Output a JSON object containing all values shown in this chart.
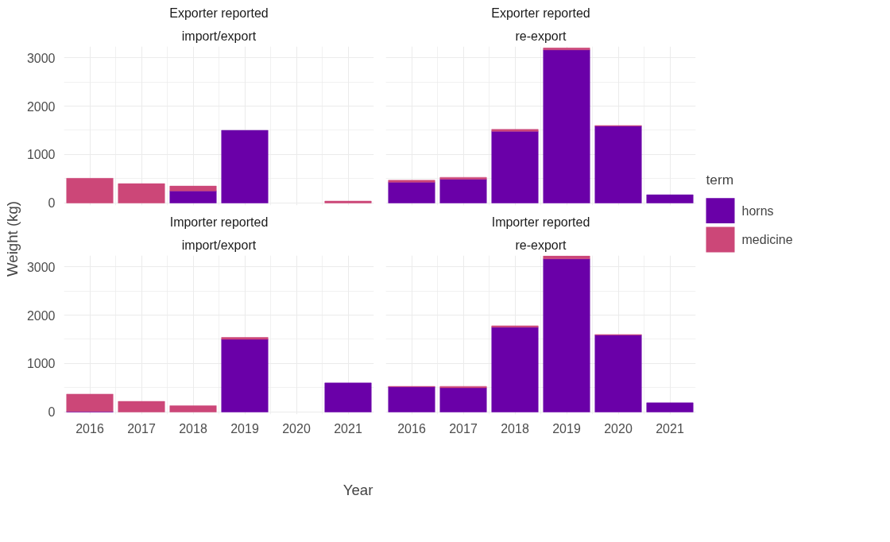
{
  "chart_data": [
    {
      "type": "bar",
      "title": "Exporter reported",
      "subtitle": "import/export",
      "ylabel": "Weight (kg)",
      "categories": [
        "2016",
        "2017",
        "2018",
        "2019",
        "2020",
        "2021"
      ],
      "stacked": true,
      "ylim": [
        -50,
        3230
      ],
      "yticks": [
        0,
        1000,
        2000,
        3000
      ],
      "grid": true,
      "tick_labels": "y",
      "series": [
        {
          "color": "#6a00a8",
          "values": [
            null,
            null,
            250,
            1500,
            null,
            null
          ]
        },
        {
          "color": "#cc4778",
          "values": [
            510,
            400,
            100,
            null,
            null,
            40
          ]
        }
      ]
    },
    {
      "type": "bar",
      "title": "Exporter reported",
      "subtitle": "re-export",
      "categories": [
        "2016",
        "2017",
        "2018",
        "2019",
        "2020",
        "2021"
      ],
      "stacked": true,
      "ylim": [
        -50,
        3230
      ],
      "yticks": [
        0,
        1000,
        2000,
        3000
      ],
      "grid": true,
      "tick_labels": false,
      "legend": "right",
      "legend_title": "term",
      "series": [
        {
          "name": "horns",
          "color": "#6a00a8",
          "values": [
            430,
            490,
            1480,
            3160,
            1590,
            170
          ]
        },
        {
          "name": "medicine",
          "color": "#cc4778",
          "values": [
            40,
            40,
            40,
            40,
            10,
            null
          ]
        }
      ]
    },
    {
      "type": "bar",
      "title": "Importer reported",
      "subtitle": "import/export",
      "xlabel": "Year",
      "categories": [
        "2016",
        "2017",
        "2018",
        "2019",
        "2020",
        "2021"
      ],
      "stacked": true,
      "ylim": [
        -50,
        3230
      ],
      "yticks": [
        0,
        1000,
        2000,
        3000
      ],
      "grid": true,
      "series": [
        {
          "color": "#6a00a8",
          "values": [
            10,
            null,
            null,
            1500,
            null,
            600
          ]
        },
        {
          "color": "#cc4778",
          "values": [
            360,
            220,
            130,
            40,
            null,
            null
          ]
        }
      ]
    },
    {
      "type": "bar",
      "title": "Importer reported",
      "subtitle": "re-export",
      "categories": [
        "2016",
        "2017",
        "2018",
        "2019",
        "2020",
        "2021"
      ],
      "stacked": true,
      "ylim": [
        -50,
        3230
      ],
      "yticks": [
        0,
        1000,
        2000,
        3000
      ],
      "grid": true,
      "tick_labels": "x",
      "series": [
        {
          "color": "#6a00a8",
          "values": [
            520,
            500,
            1750,
            3160,
            1590,
            190
          ]
        },
        {
          "color": "#cc4778",
          "values": [
            10,
            30,
            30,
            60,
            10,
            null
          ]
        }
      ]
    }
  ]
}
